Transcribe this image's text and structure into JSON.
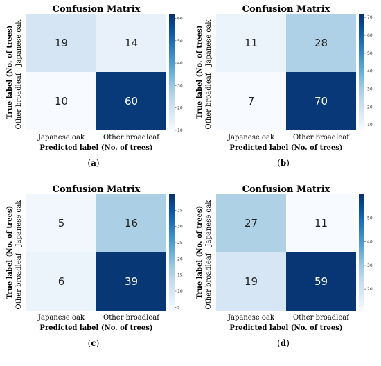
{
  "chart_data": [
    {
      "type": "heatmap",
      "title": "Confusion Matrix",
      "xlabel": "Predicted label (No. of trees)",
      "ylabel": "True label (No. of trees)",
      "x_categories": [
        "Japanese oak",
        "Other broadleaf"
      ],
      "y_categories": [
        "Japanese oak",
        "Other broadleaf"
      ],
      "values": [
        [
          19,
          14
        ],
        [
          10,
          60
        ]
      ],
      "colorbar": {
        "min": 10,
        "max": 62,
        "ticks": [
          10,
          20,
          30,
          40,
          50,
          60
        ]
      },
      "colormap": "Blues",
      "caption_letter": "a"
    },
    {
      "type": "heatmap",
      "title": "Confusion Matrix",
      "xlabel": "Predicted label (No. of trees)",
      "ylabel": "True label (No. of trees)",
      "x_categories": [
        "Japanese oak",
        "Other broadleaf"
      ],
      "y_categories": [
        "Japanese oak",
        "Other broadleaf"
      ],
      "values": [
        [
          11,
          28
        ],
        [
          7,
          70
        ]
      ],
      "colorbar": {
        "min": 7,
        "max": 72,
        "ticks": [
          10,
          20,
          30,
          40,
          50,
          60,
          70
        ]
      },
      "colormap": "Blues",
      "caption_letter": "b"
    },
    {
      "type": "heatmap",
      "title": "Confusion Matrix",
      "xlabel": "Predicted label (No. of trees)",
      "ylabel": "True label (No. of trees)",
      "x_categories": [
        "Japanese oak",
        "Other broadleaf"
      ],
      "y_categories": [
        "Japanese oak",
        "Other broadleaf"
      ],
      "values": [
        [
          5,
          16
        ],
        [
          6,
          39
        ]
      ],
      "colorbar": {
        "min": 4,
        "max": 40,
        "ticks": [
          5,
          10,
          15,
          20,
          25,
          30,
          35
        ]
      },
      "colormap": "Blues",
      "caption_letter": "c"
    },
    {
      "type": "heatmap",
      "title": "Confusion Matrix",
      "xlabel": "Predicted label (No. of trees)",
      "ylabel": "True label (No. of trees)",
      "x_categories": [
        "Japanese oak",
        "Other broadleaf"
      ],
      "y_categories": [
        "Japanese oak",
        "Other broadleaf"
      ],
      "values": [
        [
          27,
          11
        ],
        [
          19,
          59
        ]
      ],
      "colorbar": {
        "min": 11,
        "max": 60,
        "ticks": [
          20,
          30,
          40,
          50
        ]
      },
      "colormap": "Blues",
      "caption_letter": "d"
    }
  ]
}
